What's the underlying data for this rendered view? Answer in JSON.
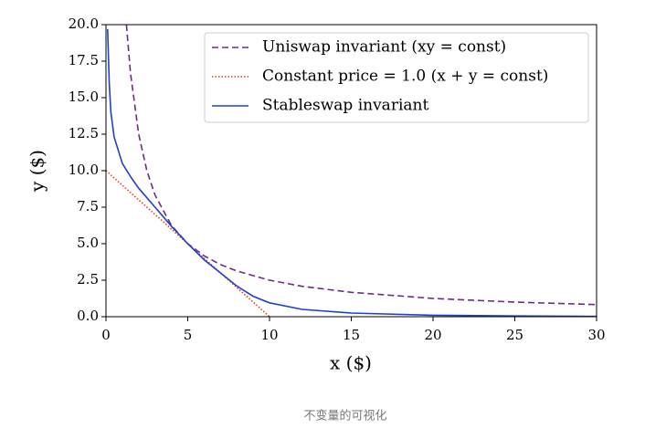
{
  "chart_data": {
    "type": "line",
    "xlabel": "x ($)",
    "ylabel": "y ($)",
    "xlim": [
      0,
      30
    ],
    "ylim": [
      0,
      20
    ],
    "xticks": [
      0,
      5,
      10,
      15,
      20,
      25,
      30
    ],
    "yticks": [
      {
        "value": 0,
        "label": "0.0"
      },
      2.5,
      {
        "value": 5,
        "label": "5.0"
      },
      7.5,
      {
        "value": 10,
        "label": "10.0"
      },
      12.5,
      {
        "value": 15,
        "label": "15.0"
      },
      17.5,
      {
        "value": 20,
        "label": "20.0"
      }
    ],
    "legend": "upper right",
    "series": [
      {
        "name": "Uniswap invariant (xy = const)",
        "color": "#6f2a83",
        "style": "dashed",
        "x": [
          1.25,
          1.5,
          2,
          2.5,
          3,
          4,
          5,
          6,
          7,
          8,
          10,
          12,
          15,
          20,
          25,
          30
        ],
        "values": [
          20,
          16.67,
          12.5,
          10,
          8.33,
          6.25,
          5,
          4.17,
          3.57,
          3.13,
          2.5,
          2.08,
          1.67,
          1.25,
          1,
          0.83
        ]
      },
      {
        "name": "Constant price = 1.0 (x + y = const)",
        "color": "#e0401c",
        "style": "dotted",
        "x": [
          0,
          10
        ],
        "values": [
          10,
          0
        ]
      },
      {
        "name": "Stableswap invariant",
        "color": "#1f3fd6",
        "style": "solid",
        "x": [
          0.1,
          0.2,
          0.3,
          0.5,
          1,
          1.5,
          2,
          3,
          4,
          5,
          6,
          7,
          8,
          9,
          10,
          12,
          15,
          20,
          25,
          30
        ],
        "values": [
          19.7,
          16,
          14,
          12.3,
          10.5,
          9.6,
          8.8,
          7.5,
          6.2,
          5,
          3.9,
          3,
          2.1,
          1.4,
          0.95,
          0.5,
          0.25,
          0.1,
          0.05,
          0.02
        ]
      }
    ]
  },
  "caption": "不变量的可视化"
}
